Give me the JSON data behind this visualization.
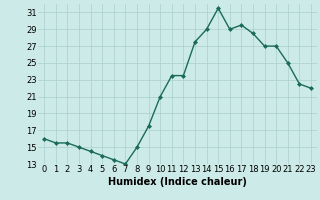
{
  "x": [
    0,
    1,
    2,
    3,
    4,
    5,
    6,
    7,
    8,
    9,
    10,
    11,
    12,
    13,
    14,
    15,
    16,
    17,
    18,
    19,
    20,
    21,
    22,
    23
  ],
  "y": [
    16,
    15.5,
    15.5,
    15,
    14.5,
    14,
    13.5,
    13,
    15,
    17.5,
    21,
    23.5,
    23.5,
    27.5,
    29,
    31.5,
    29,
    29.5,
    28.5,
    27,
    27,
    25,
    22.5,
    22
  ],
  "line_color": "#1a6b5a",
  "marker": "D",
  "marker_size": 2,
  "bg_color": "#cceae7",
  "grid_color": "#aacfcc",
  "xlabel": "Humidex (Indice chaleur)",
  "ylim": [
    13,
    32
  ],
  "xlim": [
    -0.5,
    23.5
  ],
  "yticks": [
    13,
    15,
    17,
    19,
    21,
    23,
    25,
    27,
    29,
    31
  ],
  "xticks": [
    0,
    1,
    2,
    3,
    4,
    5,
    6,
    7,
    8,
    9,
    10,
    11,
    12,
    13,
    14,
    15,
    16,
    17,
    18,
    19,
    20,
    21,
    22,
    23
  ],
  "xlabel_fontsize": 7,
  "tick_fontsize": 6,
  "line_width": 1.0
}
